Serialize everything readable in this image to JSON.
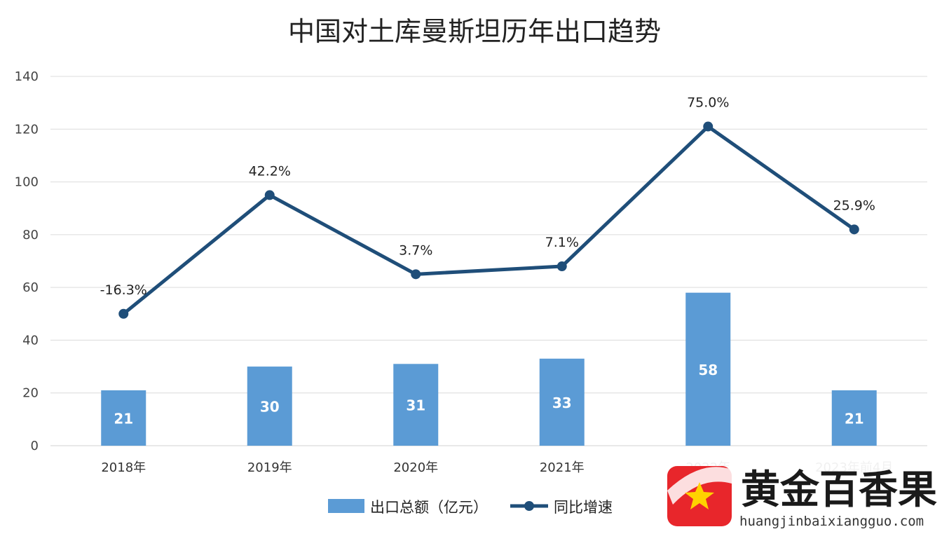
{
  "chart_data": {
    "type": "bar",
    "title": "中国对土库曼斯坦历年出口趋势",
    "categories": [
      "2018年",
      "2019年",
      "2020年",
      "2021年",
      "2022年",
      "2023年前4月"
    ],
    "ylim": [
      0,
      140
    ],
    "yticks": [
      "0",
      "20",
      "40",
      "60",
      "80",
      "100",
      "120",
      "140"
    ],
    "grid": true,
    "legend_position": "bottom",
    "series": [
      {
        "name": "出口总额（亿元）",
        "type": "bar",
        "color": "#5b9bd5",
        "values": [
          21,
          30,
          31,
          33,
          58,
          21
        ],
        "labels": [
          "21",
          "30",
          "31",
          "33",
          "58",
          "21"
        ]
      },
      {
        "name": "同比增速",
        "type": "line",
        "color": "#1f4e79",
        "positions": [
          50,
          95,
          65,
          68,
          121,
          82
        ],
        "labels": [
          "-16.3%",
          "42.2%",
          "3.7%",
          "7.1%",
          "75.0%",
          "25.9%"
        ]
      }
    ]
  },
  "watermark": {
    "name": "黄金百香果",
    "url": "huangjinbaixiangguo.com",
    "logo_icon": "star-in-red-square-icon"
  }
}
